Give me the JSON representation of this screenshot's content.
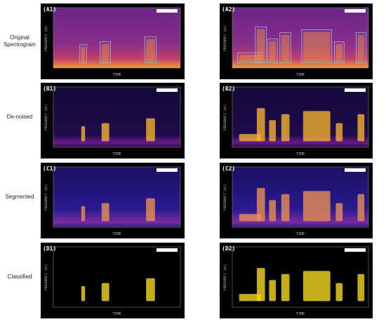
{
  "rows": [
    {
      "label": "Original Spectrogram",
      "panels": [
        {
          "label": "(A1)"
        },
        {
          "label": "(A2)"
        }
      ]
    },
    {
      "label": "De-noised",
      "panels": [
        {
          "label": "(B1)"
        },
        {
          "label": "(B2)"
        }
      ]
    },
    {
      "label": "Segmented",
      "panels": [
        {
          "label": "(C1)"
        },
        {
          "label": "(C2)"
        }
      ]
    },
    {
      "label": "Classified",
      "panels": [
        {
          "label": "(D1)"
        },
        {
          "label": "(D2)"
        }
      ]
    }
  ],
  "axis": {
    "x_label": "TIME",
    "y_label": "FREQUENCY (Hz)"
  }
}
